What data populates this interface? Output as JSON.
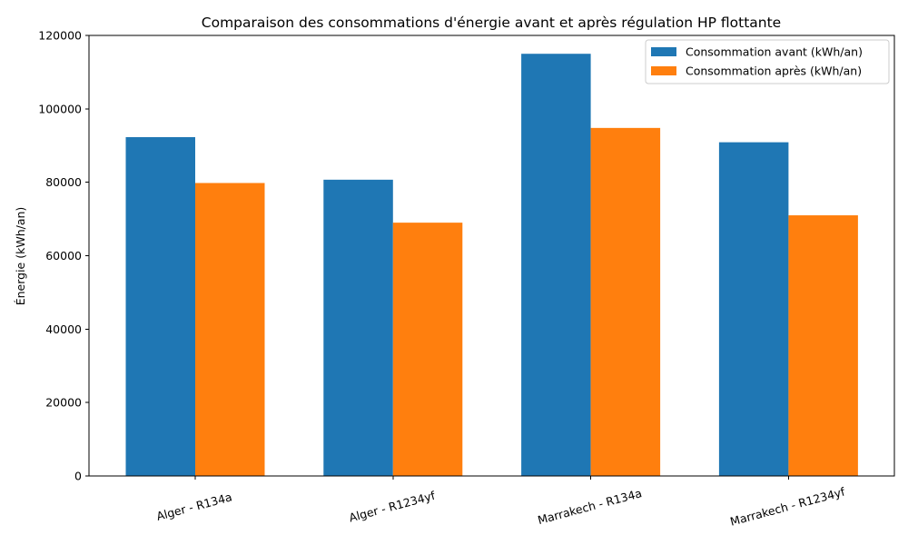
{
  "chart_data": {
    "type": "bar",
    "title": "Comparaison des consommations d'énergie avant et après régulation HP flottante",
    "xlabel": "",
    "ylabel": "Énergie (kWh/an)",
    "categories": [
      "Alger - R134a",
      "Alger - R1234yf",
      "Marrakech - R134a",
      "Marrakech - R1234yf"
    ],
    "series": [
      {
        "name": "Consommation avant (kWh/an)",
        "color": "#1f77b4",
        "values": [
          92300,
          80700,
          115000,
          90900
        ]
      },
      {
        "name": "Consommation après (kWh/an)",
        "color": "#ff7f0e",
        "values": [
          79800,
          69000,
          94800,
          71000
        ]
      }
    ],
    "ylim": [
      0,
      120000
    ],
    "yticks": [
      "0",
      "20000",
      "40000",
      "60000",
      "80000",
      "100000",
      "120000"
    ],
    "legend_position": "top-right",
    "grid": false,
    "xtick_rotation_deg": -15
  }
}
